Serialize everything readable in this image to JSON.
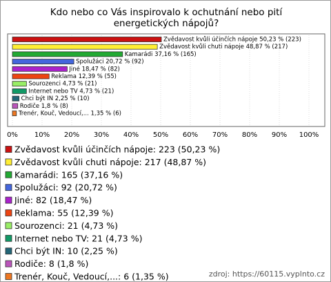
{
  "chart_data": {
    "type": "barh",
    "title": "Kdo nebo co Vás inspirovalo k ochutnání nebo pití energetických nápojů?",
    "categories": [
      "Zvědavost kvůli účinčích nápoje",
      "Zvědavost kvůli chuti nápoje",
      "Kamarádi",
      "Spolužáci",
      "Jiné",
      "Reklama",
      "Sourozenci",
      "Internet nebo TV",
      "Chci být IN",
      "Rodiče",
      "Trenér, Kouč, Vedoucí,..."
    ],
    "values": [
      50.23,
      48.87,
      37.16,
      20.72,
      18.47,
      12.39,
      4.73,
      4.73,
      2.25,
      1.8,
      1.35
    ],
    "value_labels": [
      "Zvědavost kvůli účinčích nápoje 50,23 % (223)",
      "Zvědavost kvůli chuti nápoje 48,87 % (217)",
      "Kamarádi 37,16 % (165)",
      "Spolužáci 20,72 % (92)",
      "Jiné 18,47 % (82)",
      "Reklama 12,39 % (55)",
      "Sourozenci 4,73 % (21)",
      "Internet nebo TV 4,73 % (21)",
      "Chci být IN 2,25 % (10)",
      "Rodiče 1,8 % (8)",
      "Trenér, Kouč, Vedoucí,... 1,35 % (6)"
    ],
    "legend_labels": [
      "Zvědavost kvůli účinčích nápoje: 223 (50,23 %)",
      "Zvědavost kvůli chuti nápoje: 217 (48,87 %)",
      "Kamarádi: 165 (37,16 %)",
      "Spolužáci: 92 (20,72 %)",
      "Jiné: 82 (18,47 %)",
      "Reklama: 55 (12,39 %)",
      "Sourozenci: 21 (4,73 %)",
      "Internet nebo TV: 21 (4,73 %)",
      "Chci být IN: 10 (2,25 %)",
      "Rodiče: 8 (1,8 %)",
      "Trenér, Kouč, Vedoucí,...: 6 (1,35 %)"
    ],
    "colors": [
      "#cc1111",
      "#ffee33",
      "#22aa33",
      "#4466dd",
      "#aa22cc",
      "#ee4411",
      "#99ee66",
      "#119966",
      "#226677",
      "#bb55bb",
      "#ee7722"
    ],
    "xlim": [
      0,
      100
    ],
    "xticks": [
      {
        "value": 0,
        "label": "0%"
      },
      {
        "value": 10,
        "label": "10%"
      },
      {
        "value": 20,
        "label": "20%"
      },
      {
        "value": 30,
        "label": "30%"
      },
      {
        "value": 40,
        "label": "40%"
      },
      {
        "value": 50,
        "label": "50%"
      },
      {
        "value": 60,
        "label": "60%"
      },
      {
        "value": 70,
        "label": "70%"
      },
      {
        "value": 80,
        "label": "80%"
      },
      {
        "value": 90,
        "label": "90%"
      },
      {
        "value": 100,
        "label": "100%"
      }
    ],
    "source": "zdroj: https://60115.vyplnto.cz"
  }
}
